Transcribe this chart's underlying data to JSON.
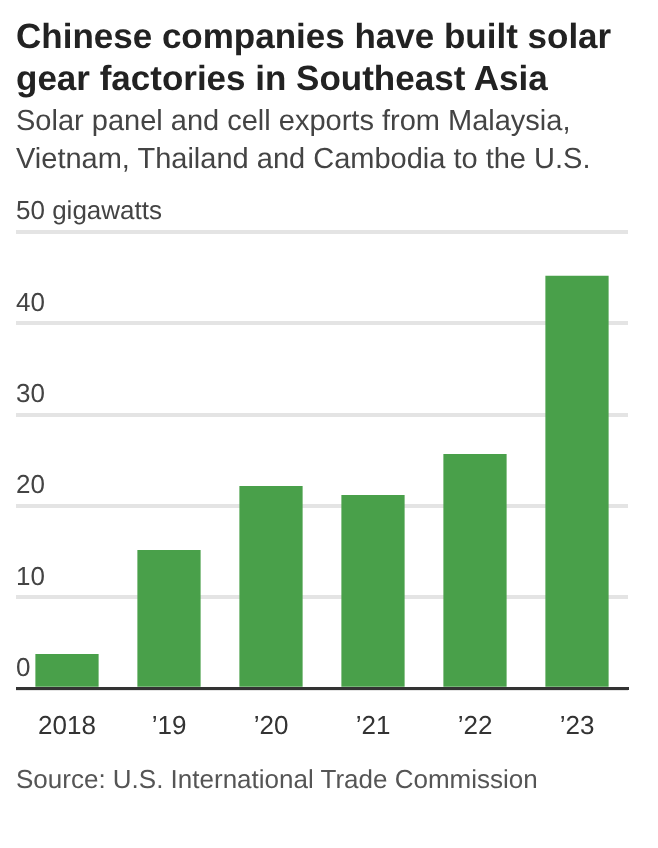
{
  "chart_data": {
    "type": "bar",
    "title": "Chinese companies have built solar gear factories in Southeast Asia",
    "subtitle": "Solar panel and cell exports from Malaysia, Vietnam, Thailand and Cambodia to the U.S.",
    "categories": [
      "2018",
      "’19",
      "’20",
      "’21",
      "’22",
      "’23"
    ],
    "values": [
      3.8,
      15.2,
      22.2,
      21.2,
      25.7,
      45.2
    ],
    "color": "#49a04a",
    "ylim": [
      0,
      50
    ],
    "yticks": [
      0,
      10,
      20,
      30,
      40,
      {
        "value": 50,
        "label": "50 gigawatts"
      }
    ],
    "grid": "y",
    "annotations": [
      "Source: U.S. International Trade Commission"
    ]
  }
}
